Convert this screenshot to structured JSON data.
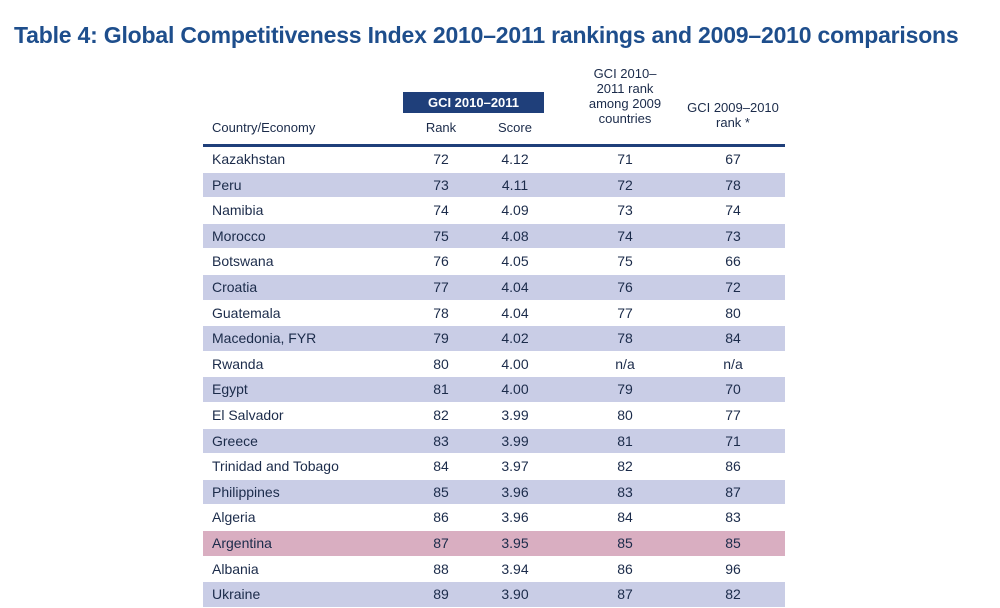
{
  "title": "Table 4: Global Competitiveness Index 2010–2011 rankings and 2009–2010 comparisons",
  "header": {
    "gci_band": "GCI 2010–2011",
    "country": "Country/Economy",
    "rank": "Rank",
    "score": "Score",
    "among": "GCI 2010–\n2011 rank\namong 2009\ncountries",
    "prev": "GCI 2009–2010\nrank *"
  },
  "rows": [
    {
      "country": "Kazakhstan",
      "rank": "72",
      "score": "4.12",
      "among": "71",
      "prev": "67"
    },
    {
      "country": "Peru",
      "rank": "73",
      "score": "4.11",
      "among": "72",
      "prev": "78"
    },
    {
      "country": "Namibia",
      "rank": "74",
      "score": "4.09",
      "among": "73",
      "prev": "74"
    },
    {
      "country": "Morocco",
      "rank": "75",
      "score": "4.08",
      "among": "74",
      "prev": "73"
    },
    {
      "country": "Botswana",
      "rank": "76",
      "score": "4.05",
      "among": "75",
      "prev": "66"
    },
    {
      "country": "Croatia",
      "rank": "77",
      "score": "4.04",
      "among": "76",
      "prev": "72"
    },
    {
      "country": "Guatemala",
      "rank": "78",
      "score": "4.04",
      "among": "77",
      "prev": "80"
    },
    {
      "country": "Macedonia, FYR",
      "rank": "79",
      "score": "4.02",
      "among": "78",
      "prev": "84"
    },
    {
      "country": "Rwanda",
      "rank": "80",
      "score": "4.00",
      "among": "n/a",
      "prev": "n/a"
    },
    {
      "country": "Egypt",
      "rank": "81",
      "score": "4.00",
      "among": "79",
      "prev": "70"
    },
    {
      "country": "El Salvador",
      "rank": "82",
      "score": "3.99",
      "among": "80",
      "prev": "77"
    },
    {
      "country": "Greece",
      "rank": "83",
      "score": "3.99",
      "among": "81",
      "prev": "71"
    },
    {
      "country": "Trinidad and Tobago",
      "rank": "84",
      "score": "3.97",
      "among": "82",
      "prev": "86"
    },
    {
      "country": "Philippines",
      "rank": "85",
      "score": "3.96",
      "among": "83",
      "prev": "87"
    },
    {
      "country": "Algeria",
      "rank": "86",
      "score": "3.96",
      "among": "84",
      "prev": "83"
    },
    {
      "country": "Argentina",
      "rank": "87",
      "score": "3.95",
      "among": "85",
      "prev": "85",
      "highlight": true
    },
    {
      "country": "Albania",
      "rank": "88",
      "score": "3.94",
      "among": "86",
      "prev": "96"
    },
    {
      "country": "Ukraine",
      "rank": "89",
      "score": "3.90",
      "among": "87",
      "prev": "82"
    }
  ],
  "colors": {
    "title": "#1e4e8c",
    "header_band": "#1f3f7a",
    "row_alt": "#c9cde6",
    "row_highlight": "#d9aec1"
  }
}
